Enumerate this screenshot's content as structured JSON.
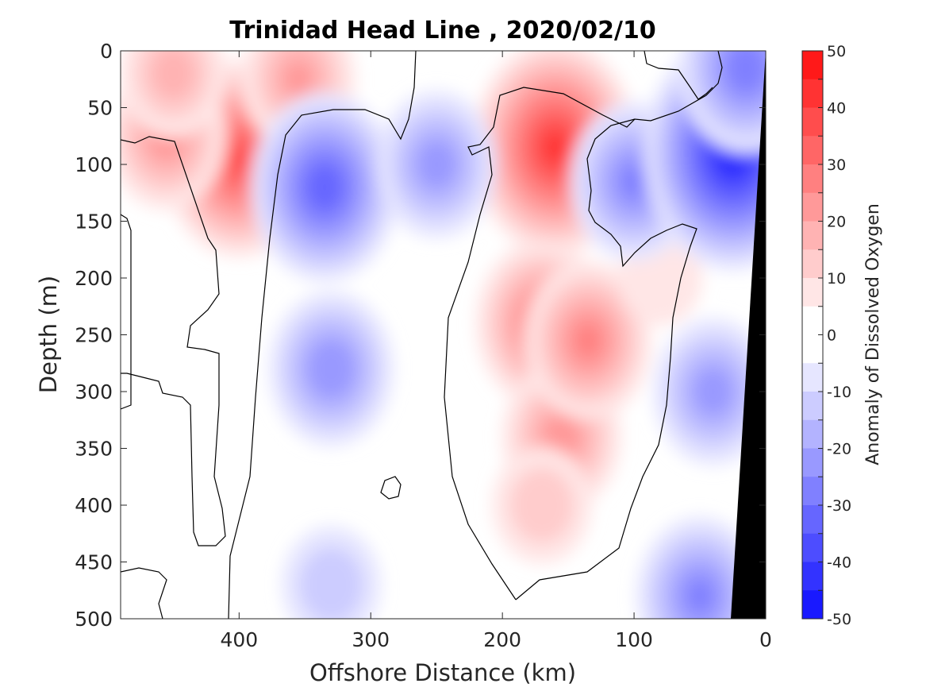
{
  "chart_data": {
    "type": "contourf",
    "title": "Trinidad Head Line , 2020/02/10",
    "xlabel": "Offshore Distance (km)",
    "ylabel": "Depth (m)",
    "xlim": [
      490,
      0
    ],
    "ylim": [
      0,
      500
    ],
    "x_reversed": true,
    "y_reversed": true,
    "x_ticks": [
      400,
      300,
      200,
      100,
      0
    ],
    "x_tick_labels": [
      "400",
      "300",
      "200",
      "100",
      "0"
    ],
    "y_ticks": [
      0,
      50,
      100,
      150,
      200,
      250,
      300,
      350,
      400,
      450,
      500
    ],
    "y_tick_labels": [
      "0",
      "50",
      "100",
      "150",
      "200",
      "250",
      "300",
      "350",
      "400",
      "450",
      "500"
    ],
    "colorbar": {
      "label": "Anomaly of Dissolved Oxygen",
      "limits": [
        -50,
        50
      ],
      "ticks": [
        50,
        40,
        30,
        20,
        10,
        0,
        -10,
        -20,
        -30,
        -40,
        -50
      ],
      "tick_labels": [
        "50",
        "40",
        "30",
        "20",
        "10",
        "0",
        "-10",
        "-20",
        "-30",
        "-40",
        "-50"
      ],
      "level_step": 5,
      "colormap": "blue-white-red",
      "min_color": "#0000ff",
      "max_color": "#ff0000",
      "mid_color": "#ffffff"
    },
    "zero_contour_color": "#000000",
    "bathymetry_mask_color": "#000000",
    "features": [
      {
        "sign": "positive",
        "x": 400,
        "depth": 95,
        "peak": 35
      },
      {
        "sign": "positive",
        "x": 455,
        "depth": 75,
        "peak": 22
      },
      {
        "sign": "positive",
        "x": 450,
        "depth": 20,
        "peak": 17
      },
      {
        "sign": "positive",
        "x": 355,
        "depth": 25,
        "peak": 20
      },
      {
        "sign": "positive",
        "x": 160,
        "depth": 85,
        "peak": 40
      },
      {
        "sign": "positive",
        "x": 170,
        "depth": 240,
        "peak": 27
      },
      {
        "sign": "positive",
        "x": 155,
        "depth": 340,
        "peak": 22
      },
      {
        "sign": "positive",
        "x": 135,
        "depth": 255,
        "peak": 25
      },
      {
        "sign": "positive",
        "x": 170,
        "depth": 400,
        "peak": 14
      },
      {
        "sign": "positive",
        "x": 80,
        "depth": 200,
        "peak": 8
      },
      {
        "sign": "negative",
        "x": 335,
        "depth": 120,
        "peak": -33
      },
      {
        "sign": "negative",
        "x": 330,
        "depth": 280,
        "peak": -24
      },
      {
        "sign": "negative",
        "x": 250,
        "depth": 100,
        "peak": -22
      },
      {
        "sign": "negative",
        "x": 100,
        "depth": 115,
        "peak": -25
      },
      {
        "sign": "negative",
        "x": 25,
        "depth": 90,
        "peak": -45
      },
      {
        "sign": "negative",
        "x": 15,
        "depth": 15,
        "peak": -28
      },
      {
        "sign": "negative",
        "x": 40,
        "depth": 300,
        "peak": -22
      },
      {
        "sign": "negative",
        "x": 330,
        "depth": 470,
        "peak": -14
      },
      {
        "sign": "negative",
        "x": 50,
        "depth": 480,
        "peak": -25
      }
    ]
  }
}
